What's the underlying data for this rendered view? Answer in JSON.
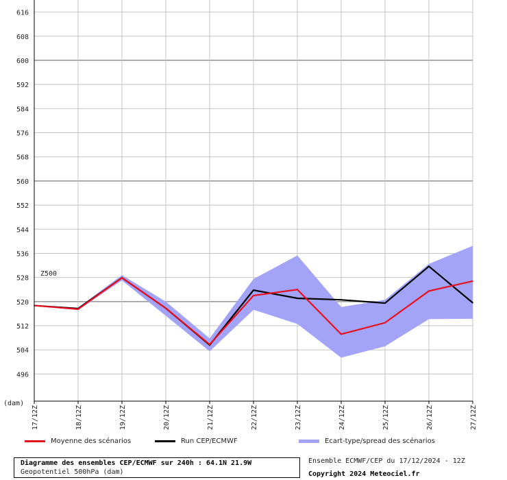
{
  "chart_data": {
    "type": "line",
    "series_label": "Z500",
    "y_unit": "(dam)",
    "categories": [
      "17/12Z",
      "18/12Z",
      "19/12Z",
      "20/12Z",
      "21/12Z",
      "22/12Z",
      "23/12Z",
      "24/12Z",
      "25/12Z",
      "26/12Z",
      "27/12Z"
    ],
    "yticks": [
      496,
      504,
      512,
      520,
      528,
      536,
      544,
      552,
      560,
      568,
      576,
      584,
      592,
      600,
      608,
      616
    ],
    "ylim": [
      487,
      620
    ],
    "major_gridlines": [
      520,
      560,
      600
    ],
    "spread": {
      "name": "Ecart-type/spread des scénarios",
      "color": "#a3a3f7",
      "upper": [
        518.8,
        518.0,
        528.8,
        520.0,
        507.8,
        527.5,
        535.3,
        518.2,
        520.6,
        532.5,
        538.5
      ],
      "lower": [
        518.6,
        517.2,
        527.0,
        515.3,
        503.5,
        517.3,
        512.6,
        501.4,
        505.2,
        514.2,
        514.3
      ]
    },
    "series": [
      {
        "name": "Moyenne des scénarios",
        "color": "#e8101c",
        "values": [
          518.7,
          517.5,
          527.9,
          517.8,
          505.8,
          522.0,
          524.0,
          509.2,
          513.0,
          523.5,
          526.8
        ]
      },
      {
        "name": "Run CEP/ECMWF",
        "color": "#000000",
        "values": [
          518.7,
          517.7,
          527.9,
          517.8,
          505.6,
          523.8,
          521.1,
          520.6,
          519.5,
          531.7,
          519.6
        ]
      }
    ]
  },
  "info": {
    "title": "Diagramme des ensembles CEP/ECMWF sur 240h : 64.1N 21.9W",
    "subtitle": "Geopotentiel 500hPa (dam)",
    "ensemble": "Ensemble ECMWF/CEP du 17/12/2024 - 12Z",
    "copyright": "Copyright 2024 Meteociel.fr"
  }
}
